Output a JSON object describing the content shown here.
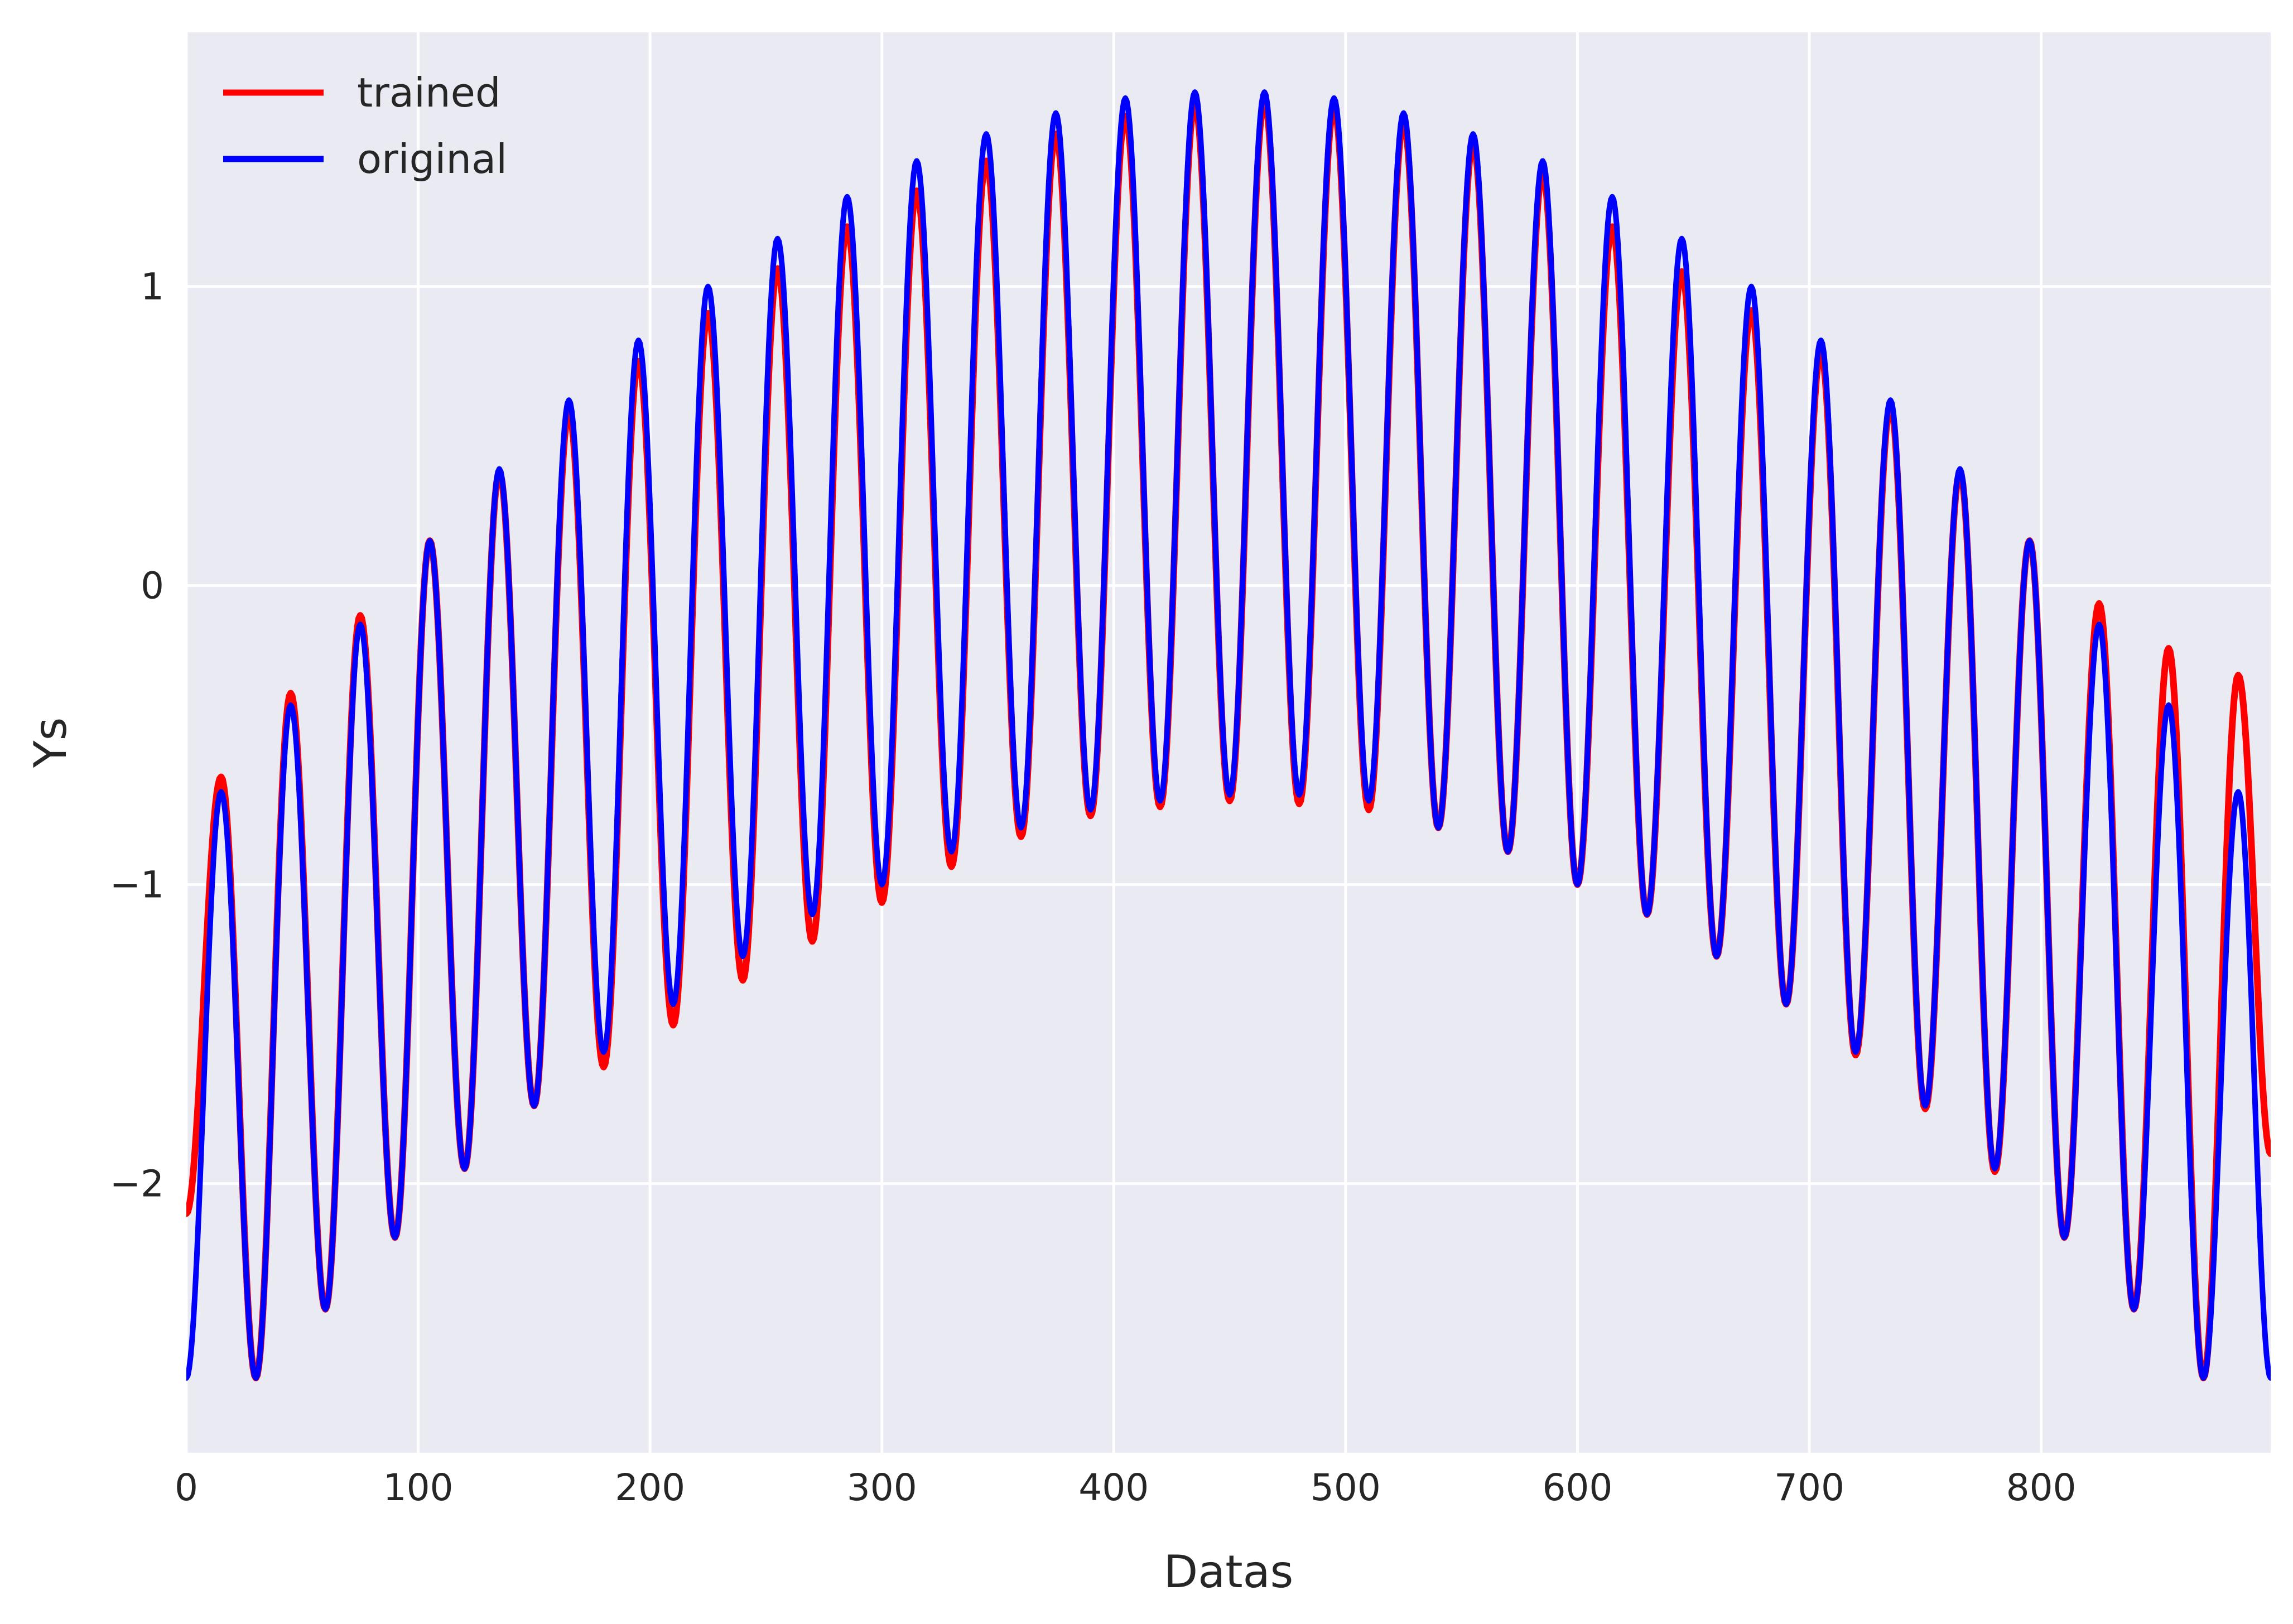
{
  "chart_data": {
    "type": "line",
    "xlabel": "Datas",
    "ylabel": "Ys",
    "xlim": [
      0,
      899
    ],
    "ylim": [
      -2.9,
      1.85
    ],
    "xticks": [
      0,
      100,
      200,
      300,
      400,
      500,
      600,
      700,
      800
    ],
    "xtick_labels": [
      "0",
      "100",
      "200",
      "300",
      "400",
      "500",
      "600",
      "700",
      "800"
    ],
    "yticks": [
      -2,
      -1,
      0,
      1
    ],
    "ytick_labels": [
      "−2",
      "−1",
      "0",
      "1"
    ],
    "grid": true,
    "legend_position": "upper-left",
    "series": [
      {
        "name": "trained",
        "color": "#ff0000",
        "x": [
          0,
          15,
          30,
          45,
          60,
          75,
          90,
          105,
          120,
          135,
          150,
          165,
          180,
          195,
          210,
          225,
          240,
          255,
          270,
          285,
          300,
          315,
          330,
          345,
          360,
          375,
          390,
          405,
          420,
          435,
          450,
          465,
          480,
          495,
          510,
          525,
          540,
          555,
          570,
          585,
          600,
          615,
          630,
          645,
          660,
          675,
          690,
          705,
          720,
          735,
          750,
          765,
          780,
          795,
          810,
          825,
          840,
          855,
          870,
          885,
          899
        ],
        "y": [
          -2.1,
          -0.64,
          -2.65,
          -0.36,
          -2.42,
          -0.1,
          -2.18,
          0.15,
          -1.95,
          0.38,
          -1.74,
          0.58,
          -1.61,
          0.75,
          -1.47,
          0.91,
          -1.32,
          1.06,
          -1.19,
          1.2,
          -1.06,
          1.32,
          -0.94,
          1.42,
          -0.84,
          1.51,
          -0.77,
          1.57,
          -0.74,
          1.61,
          -0.72,
          1.62,
          -0.73,
          1.6,
          -0.75,
          1.55,
          -0.81,
          1.48,
          -0.89,
          1.38,
          -1.0,
          1.2,
          -1.1,
          1.05,
          -1.24,
          0.92,
          -1.4,
          0.78,
          -1.57,
          0.6,
          -1.75,
          0.38,
          -1.96,
          0.15,
          -2.18,
          -0.06,
          -2.42,
          -0.21,
          -2.65,
          -0.3,
          -1.9
        ]
      },
      {
        "name": "original",
        "color": "#0000ff",
        "x": [
          0,
          15,
          30,
          45,
          60,
          75,
          90,
          105,
          120,
          135,
          150,
          165,
          180,
          195,
          210,
          225,
          240,
          255,
          270,
          285,
          300,
          315,
          330,
          345,
          360,
          375,
          390,
          405,
          420,
          435,
          450,
          465,
          480,
          495,
          510,
          525,
          540,
          555,
          570,
          585,
          600,
          615,
          630,
          645,
          660,
          675,
          690,
          705,
          720,
          735,
          750,
          765,
          780,
          795,
          810,
          825,
          840,
          855,
          870,
          885,
          899
        ],
        "y": [
          -2.65,
          -0.69,
          -2.65,
          -0.4,
          -2.42,
          -0.13,
          -2.18,
          0.15,
          -1.95,
          0.39,
          -1.74,
          0.62,
          -1.56,
          0.82,
          -1.4,
          1.0,
          -1.24,
          1.16,
          -1.1,
          1.3,
          -1.0,
          1.42,
          -0.89,
          1.51,
          -0.81,
          1.58,
          -0.75,
          1.63,
          -0.72,
          1.65,
          -0.7,
          1.65,
          -0.7,
          1.63,
          -0.72,
          1.58,
          -0.81,
          1.51,
          -0.89,
          1.42,
          -1.0,
          1.3,
          -1.1,
          1.16,
          -1.24,
          1.0,
          -1.4,
          0.82,
          -1.56,
          0.62,
          -1.74,
          0.39,
          -1.95,
          0.15,
          -2.18,
          -0.13,
          -2.42,
          -0.4,
          -2.65,
          -0.69,
          -2.65
        ]
      }
    ]
  }
}
